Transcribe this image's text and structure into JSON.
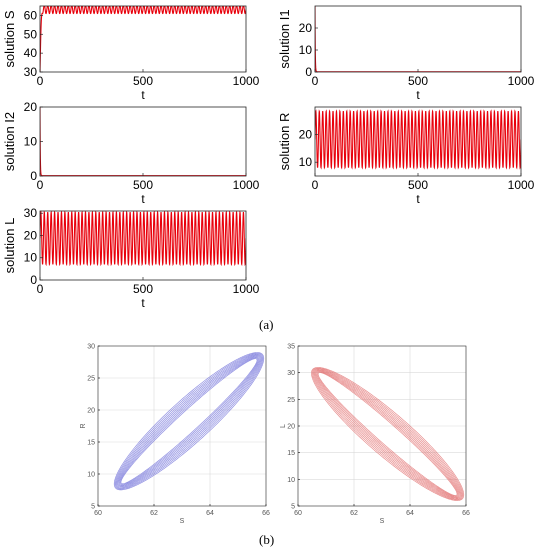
{
  "figure": {
    "label_a": "(a)",
    "label_b": "(b)"
  },
  "colors": {
    "series_red": "#e8000b",
    "phase_blue": "#6c6cd8",
    "phase_red": "#e06a6a",
    "grid": "#d9d9d9",
    "axis": "#262626"
  },
  "chart_data": [
    {
      "id": "S",
      "type": "line",
      "ylabel": "solution S",
      "xlabel": "t",
      "xlim": [
        0,
        1000
      ],
      "ylim": [
        30,
        65
      ],
      "xticks": [
        0,
        500,
        1000
      ],
      "yticks": [
        30,
        40,
        50,
        60
      ],
      "initial": 30,
      "transient_end": 12,
      "osc_min": 61,
      "osc_max": 65.5,
      "cycles": 60
    },
    {
      "id": "I1",
      "type": "line",
      "ylabel": "solution I1",
      "xlabel": "t",
      "xlim": [
        0,
        1000
      ],
      "ylim": [
        0,
        30
      ],
      "xticks": [
        0,
        500,
        1000
      ],
      "yticks": [
        0,
        10,
        20
      ],
      "initial": 30,
      "decay_end": 8,
      "final": 0.1
    },
    {
      "id": "I2",
      "type": "line",
      "ylabel": "solution I2",
      "xlabel": "t",
      "xlim": [
        0,
        1000
      ],
      "ylim": [
        0,
        20
      ],
      "xticks": [
        0,
        500,
        1000
      ],
      "yticks": [
        0,
        10,
        20
      ],
      "initial": 20,
      "decay_end": 8,
      "final": 0.1
    },
    {
      "id": "R",
      "type": "line",
      "ylabel": "solution R",
      "xlabel": "t",
      "xlim": [
        0,
        1000
      ],
      "ylim": [
        5,
        30
      ],
      "xticks": [
        0,
        500,
        1000
      ],
      "yticks": [
        10,
        20
      ],
      "initial": 20,
      "osc_min": 8,
      "osc_max": 28.5,
      "cycles": 60
    },
    {
      "id": "L",
      "type": "line",
      "ylabel": "solution L",
      "xlabel": "t",
      "xlim": [
        0,
        1000
      ],
      "ylim": [
        0,
        31
      ],
      "xticks": [
        0,
        500,
        1000
      ],
      "yticks": [
        0,
        10,
        20,
        30
      ],
      "initial": 20,
      "osc_min": 7,
      "osc_max": 30.5,
      "cycles": 60
    },
    {
      "id": "SR",
      "type": "line",
      "xlabel": "S",
      "ylabel": "R",
      "xlim": [
        60,
        66
      ],
      "ylim": [
        5,
        30
      ],
      "xticks": [
        60,
        62,
        64,
        66
      ],
      "yticks": [
        5,
        10,
        15,
        20,
        25,
        30
      ],
      "grid": true,
      "loop": {
        "s_min": 60.7,
        "s_max": 65.8,
        "v_min": 8,
        "v_max": 28.5,
        "direction": "positive"
      }
    },
    {
      "id": "SL",
      "type": "line",
      "xlabel": "S",
      "ylabel": "L",
      "xlim": [
        60,
        66
      ],
      "ylim": [
        5,
        35
      ],
      "xticks": [
        60,
        62,
        64,
        66
      ],
      "yticks": [
        5,
        10,
        15,
        20,
        25,
        30,
        35
      ],
      "grid": true,
      "loop": {
        "s_min": 60.6,
        "s_max": 65.8,
        "v_min": 6.5,
        "v_max": 30.5,
        "direction": "negative"
      }
    }
  ]
}
